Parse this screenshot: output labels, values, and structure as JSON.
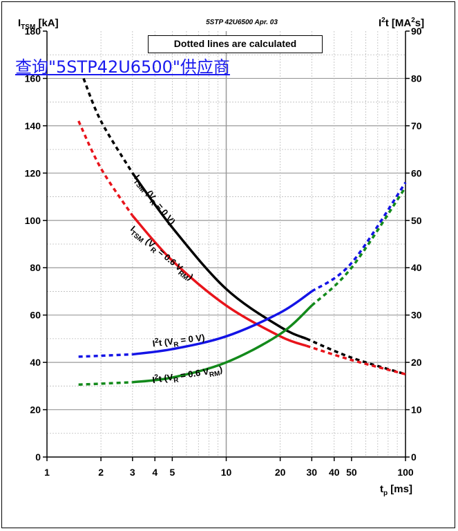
{
  "doc_ref": "5STP 42U6500 Apr. 03",
  "note": "Dotted lines are calculated",
  "watermark_link": "查询\"5STP42U6500\"供应商",
  "chart_data": {
    "type": "line",
    "x_scale": "log",
    "xlim": [
      1,
      100
    ],
    "x_ticks": [
      1,
      2,
      3,
      4,
      5,
      10,
      20,
      30,
      40,
      50,
      100
    ],
    "x_tick_labels": [
      "1",
      "2",
      "3",
      "4",
      "5",
      "10",
      "20",
      "30",
      "40",
      "50",
      "100"
    ],
    "ylim": [
      0,
      180
    ],
    "y_ticks": [
      0,
      20,
      40,
      60,
      80,
      100,
      120,
      140,
      160,
      180
    ],
    "y_tick_labels": [
      "0",
      "20",
      "40",
      "60",
      "80",
      "100",
      "120",
      "140",
      "160",
      "180"
    ],
    "y2lim": [
      0,
      90
    ],
    "y2_ticks": [
      0,
      10,
      20,
      30,
      40,
      50,
      60,
      70,
      80,
      90
    ],
    "y2_tick_labels": [
      "0",
      "10",
      "20",
      "30",
      "40",
      "50",
      "60",
      "70",
      "80",
      "90"
    ],
    "xlabel": {
      "main": "t",
      "sub": "p",
      "unit": " [ms]"
    },
    "ylabel": {
      "main": "I",
      "sub": "TSM",
      "unit": " [kA]"
    },
    "y2label": {
      "main": "I",
      "sup": "2",
      "mid": "t [MA",
      "sup2": "2",
      "end": "s]"
    },
    "grid": true,
    "series": [
      {
        "name": "ITSM (VR = 0 V)",
        "color": "#000000",
        "axis": "left",
        "label_parts": [
          "I",
          "TSM",
          " (V",
          "R",
          " = 0 V)"
        ],
        "calc_before": [
          [
            1.6,
            160
          ],
          [
            2,
            142
          ],
          [
            3,
            120
          ]
        ],
        "measured": [
          [
            3,
            120
          ],
          [
            5,
            97
          ],
          [
            10,
            71
          ],
          [
            20,
            55
          ],
          [
            28,
            50
          ]
        ],
        "calc_after": [
          [
            28,
            50
          ],
          [
            50,
            42
          ],
          [
            100,
            35
          ]
        ]
      },
      {
        "name": "ITSM (VR = 0.6 VRM)",
        "color": "#e8141b",
        "axis": "left",
        "label_parts": [
          "I",
          "TSM",
          " (V",
          "R",
          " = 0.6 V",
          "RM",
          ")"
        ],
        "calc_before": [
          [
            1.5,
            142
          ],
          [
            2,
            122
          ],
          [
            3,
            102
          ]
        ],
        "measured": [
          [
            3,
            102
          ],
          [
            5,
            83
          ],
          [
            10,
            64
          ],
          [
            20,
            51
          ],
          [
            28,
            47
          ]
        ],
        "calc_after": [
          [
            28,
            47
          ],
          [
            50,
            41
          ],
          [
            100,
            35
          ]
        ]
      },
      {
        "name": "I2t (VR = 0 V)",
        "color": "#1414e6",
        "axis": "right",
        "label_parts": [
          "I",
          "2",
          "t (V",
          "R",
          " = 0 V)"
        ],
        "calc_before": [
          [
            1.5,
            21.2
          ],
          [
            2,
            21.4
          ],
          [
            3,
            21.7
          ]
        ],
        "measured": [
          [
            3,
            21.7
          ],
          [
            5,
            22.8
          ],
          [
            10,
            25.5
          ],
          [
            20,
            30.5
          ],
          [
            30,
            35
          ]
        ],
        "calc_after": [
          [
            30,
            35
          ],
          [
            50,
            41
          ],
          [
            100,
            58
          ]
        ]
      },
      {
        "name": "I2t (VR = 0.6 VRM)",
        "color": "#138a1b",
        "axis": "right",
        "label_parts": [
          "I",
          "2",
          "t (V",
          "R",
          " = 0.6 V",
          "RM",
          ")"
        ],
        "calc_before": [
          [
            1.5,
            15.3
          ],
          [
            2,
            15.5
          ],
          [
            3,
            15.8
          ]
        ],
        "measured": [
          [
            3,
            15.8
          ],
          [
            5,
            16.8
          ],
          [
            10,
            20
          ],
          [
            20,
            26
          ],
          [
            30,
            32
          ]
        ],
        "calc_after": [
          [
            30,
            32
          ],
          [
            50,
            40
          ],
          [
            100,
            57
          ]
        ]
      }
    ]
  }
}
